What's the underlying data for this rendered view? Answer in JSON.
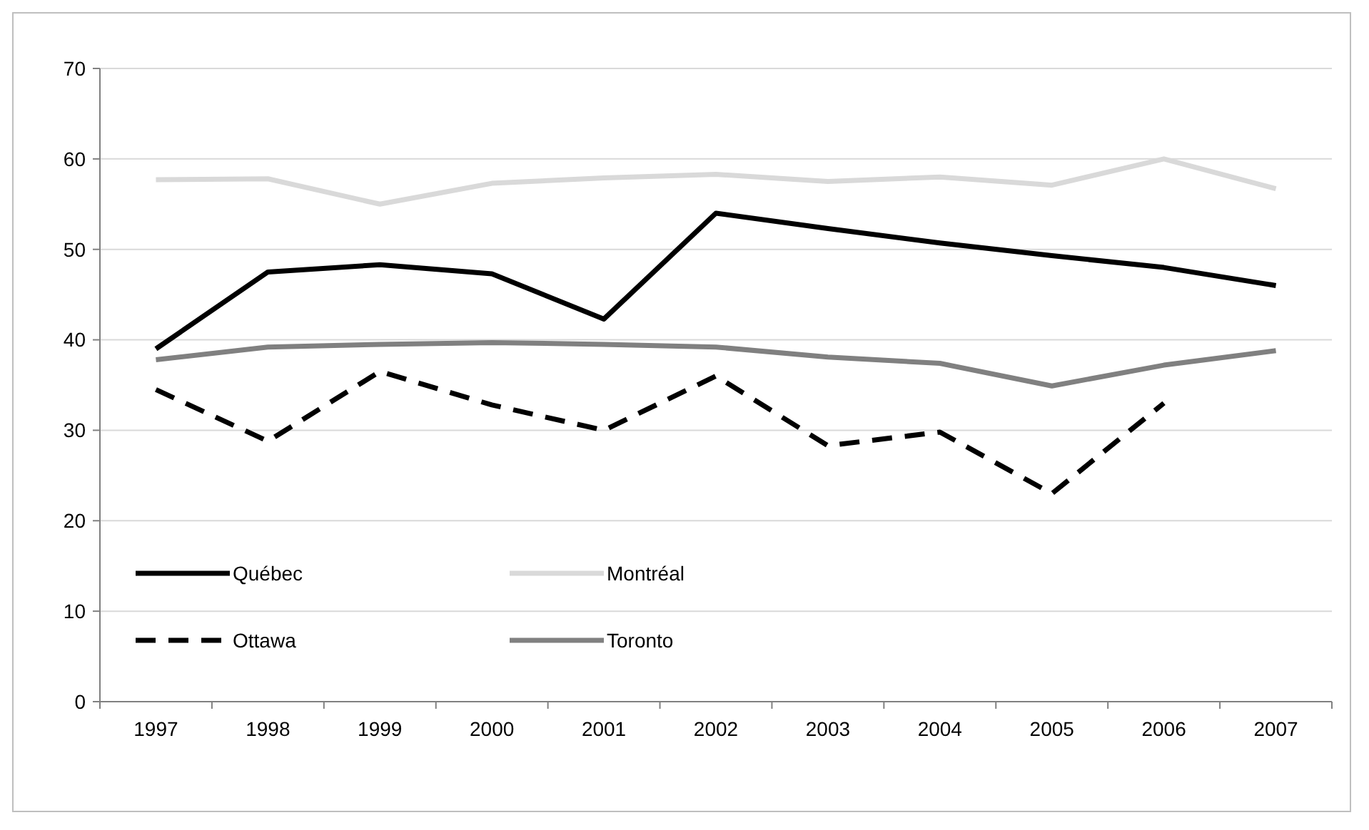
{
  "chart_data": {
    "type": "line",
    "categories": [
      "1997",
      "1998",
      "1999",
      "2000",
      "2001",
      "2002",
      "2003",
      "2004",
      "2005",
      "2006",
      "2007"
    ],
    "ylim": [
      0,
      70
    ],
    "yticks": [
      0,
      10,
      20,
      30,
      40,
      50,
      60,
      70
    ],
    "grid": "y",
    "legend": "bottom left",
    "marker": "none",
    "series": [
      {
        "name": "Québec",
        "color": "#000000",
        "line_style": "solid",
        "values": [
          39,
          47.5,
          48.3,
          47.3,
          42.3,
          54,
          52.3,
          50.7,
          49.3,
          48,
          46
        ]
      },
      {
        "name": "Montréal",
        "color": "#d9d9d9",
        "line_style": "solid",
        "values": [
          57.7,
          57.8,
          55,
          57.3,
          57.9,
          58.3,
          57.5,
          58,
          57.1,
          60,
          56.7
        ]
      },
      {
        "name": "Ottawa",
        "color": "#000000",
        "line_style": "dashed",
        "values": [
          34.5,
          28.8,
          36.5,
          32.8,
          30,
          36,
          28.3,
          29.8,
          23,
          33,
          null
        ]
      },
      {
        "name": "Toronto",
        "color": "#808080",
        "line_style": "solid",
        "values": [
          37.8,
          39.2,
          39.5,
          39.7,
          39.5,
          39.2,
          38.1,
          37.4,
          34.9,
          37.2,
          38.8
        ]
      }
    ]
  }
}
